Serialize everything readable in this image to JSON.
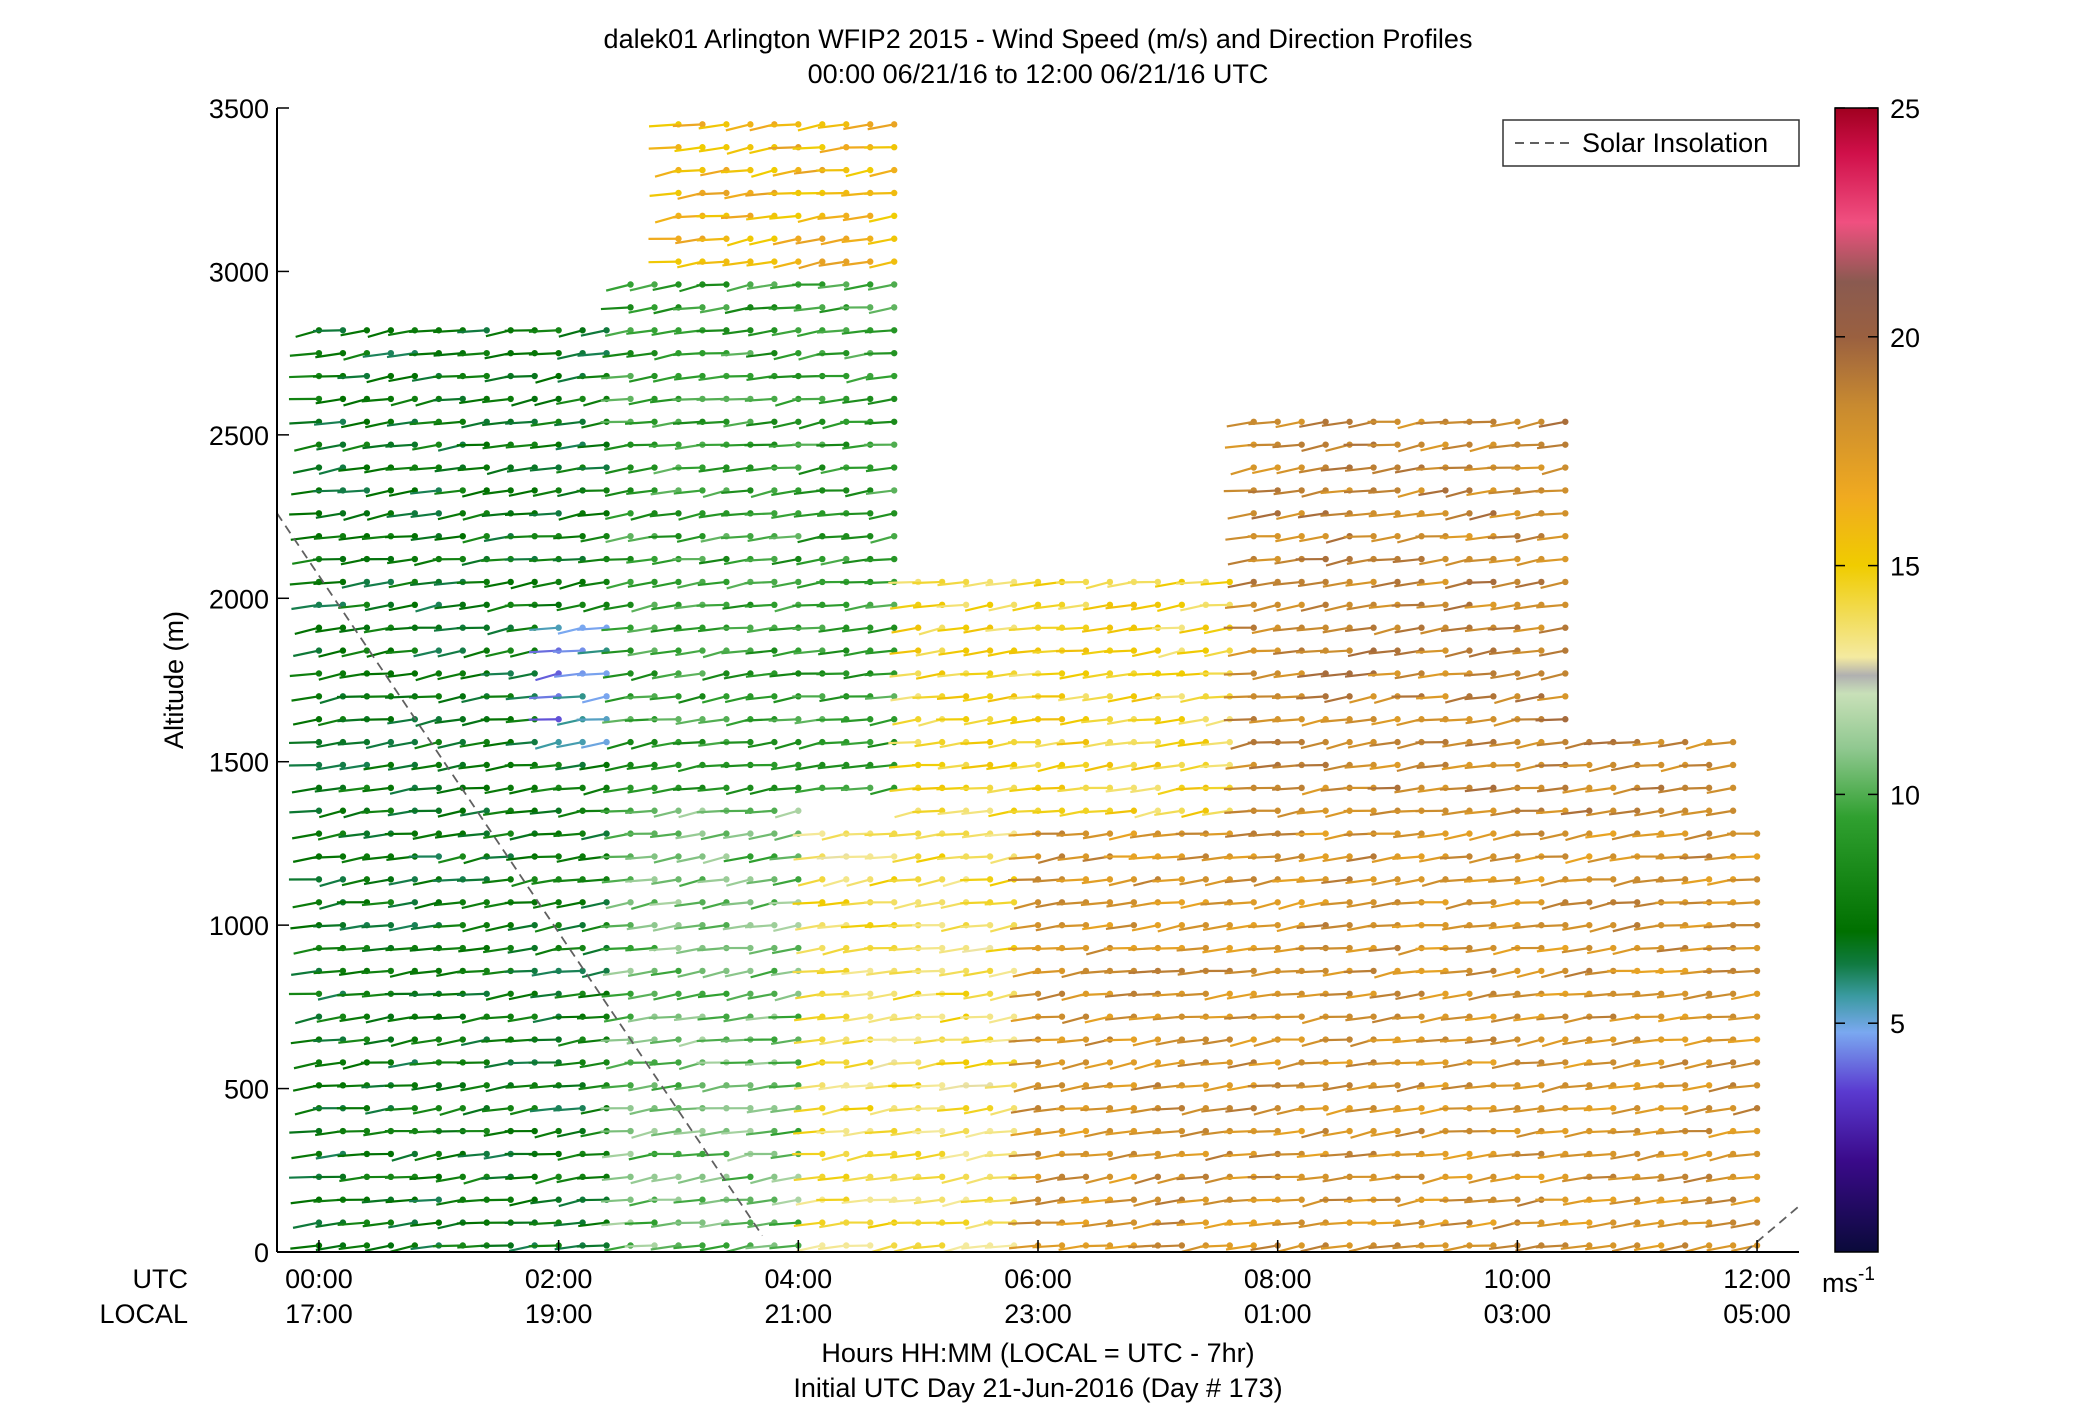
{
  "chart_data": {
    "type": "wind-barb-profile",
    "title": "dalek01 Arlington WFIP2 2015 - Wind Speed (m/s) and Direction Profiles",
    "subtitle": "00:00 06/21/16 to 12:00 06/21/16  UTC",
    "ylabel": "Altitude (m)",
    "xlabel": "Hours HH:MM  (LOCAL = UTC - 7hr)",
    "xlabel2": "Initial UTC Day 21-Jun-2016 (Day # 173)",
    "xlim_hours_utc": [
      -0.35,
      12.35
    ],
    "ylim": [
      0,
      3500
    ],
    "yticks": [
      0,
      500,
      1000,
      1500,
      2000,
      2500,
      3000,
      3500
    ],
    "xticks": [
      {
        "hour": 0,
        "utc": "00:00",
        "local": "17:00"
      },
      {
        "hour": 2,
        "utc": "02:00",
        "local": "19:00"
      },
      {
        "hour": 4,
        "utc": "04:00",
        "local": "21:00"
      },
      {
        "hour": 6,
        "utc": "06:00",
        "local": "23:00"
      },
      {
        "hour": 8,
        "utc": "08:00",
        "local": "01:00"
      },
      {
        "hour": 10,
        "utc": "10:00",
        "local": "03:00"
      },
      {
        "hour": 12,
        "utc": "12:00",
        "local": "05:00"
      }
    ],
    "row_labels": {
      "utc": "UTC",
      "local": "LOCAL"
    },
    "legend": {
      "entry": "Solar Insolation",
      "location": "top-right",
      "style": "dashed",
      "color": "#606060"
    },
    "solar_insolation_line": {
      "segments": [
        {
          "x": [
            -0.35,
            3.7
          ],
          "y": [
            2260,
            50
          ]
        },
        {
          "x": [
            11.9,
            12.35
          ],
          "y": [
            0,
            140
          ]
        }
      ]
    },
    "colorbar": {
      "label": "ms",
      "label_sup": "-1",
      "range": [
        0,
        25
      ],
      "ticks": [
        5,
        10,
        15,
        20,
        25
      ],
      "stops": [
        {
          "v": 0,
          "c": "#0a0a3a"
        },
        {
          "v": 2,
          "c": "#3a0a8a"
        },
        {
          "v": 3.5,
          "c": "#5a3ad0"
        },
        {
          "v": 4.8,
          "c": "#7aa8f0"
        },
        {
          "v": 5.6,
          "c": "#3a9aa0"
        },
        {
          "v": 6.3,
          "c": "#107a40"
        },
        {
          "v": 7.0,
          "c": "#007000"
        },
        {
          "v": 9.5,
          "c": "#30a030"
        },
        {
          "v": 11.0,
          "c": "#90c890"
        },
        {
          "v": 12.2,
          "c": "#c8e0b8"
        },
        {
          "v": 12.6,
          "c": "#b0b0b0"
        },
        {
          "v": 13.0,
          "c": "#f4eaa0"
        },
        {
          "v": 15.0,
          "c": "#f0cc00"
        },
        {
          "v": 16.5,
          "c": "#f0aa20"
        },
        {
          "v": 18.5,
          "c": "#c88a30"
        },
        {
          "v": 20.0,
          "c": "#9a6040"
        },
        {
          "v": 21.2,
          "c": "#8a5a50"
        },
        {
          "v": 22.5,
          "c": "#f05080"
        },
        {
          "v": 24.0,
          "c": "#d0104a"
        },
        {
          "v": 25.0,
          "c": "#a00020"
        }
      ]
    },
    "wind_profiles": {
      "time_step_hours": 0.2,
      "height_step_m": 70,
      "times_range_hours": [
        0,
        12
      ],
      "speed_regions_ms": [
        {
          "t": [
            0,
            2.5
          ],
          "z": [
            0,
            2850
          ],
          "speed": 7.2
        },
        {
          "t": [
            1.8,
            2.6
          ],
          "z": [
            1500,
            1950
          ],
          "speed": 4.8
        },
        {
          "t": [
            2.5,
            4.2
          ],
          "z": [
            0,
            1400
          ],
          "speed": 10.5
        },
        {
          "t": [
            2.5,
            4.9
          ],
          "z": [
            1400,
            3000
          ],
          "speed": 9.2
        },
        {
          "t": [
            4.2,
            6.0
          ],
          "z": [
            0,
            1300
          ],
          "speed": 14.0
        },
        {
          "t": [
            5.0,
            7.8
          ],
          "z": [
            1300,
            2100
          ],
          "speed": 14.5
        },
        {
          "t": [
            3.0,
            5.5
          ],
          "z": [
            3000,
            3500
          ],
          "speed": 16.0
        },
        {
          "t": [
            6.0,
            12.0
          ],
          "z": [
            0,
            1300
          ],
          "speed": 18.0
        },
        {
          "t": [
            7.8,
            11.8
          ],
          "z": [
            1300,
            2600
          ],
          "speed": 18.5
        }
      ],
      "direction_deg_typical": 250
    }
  }
}
